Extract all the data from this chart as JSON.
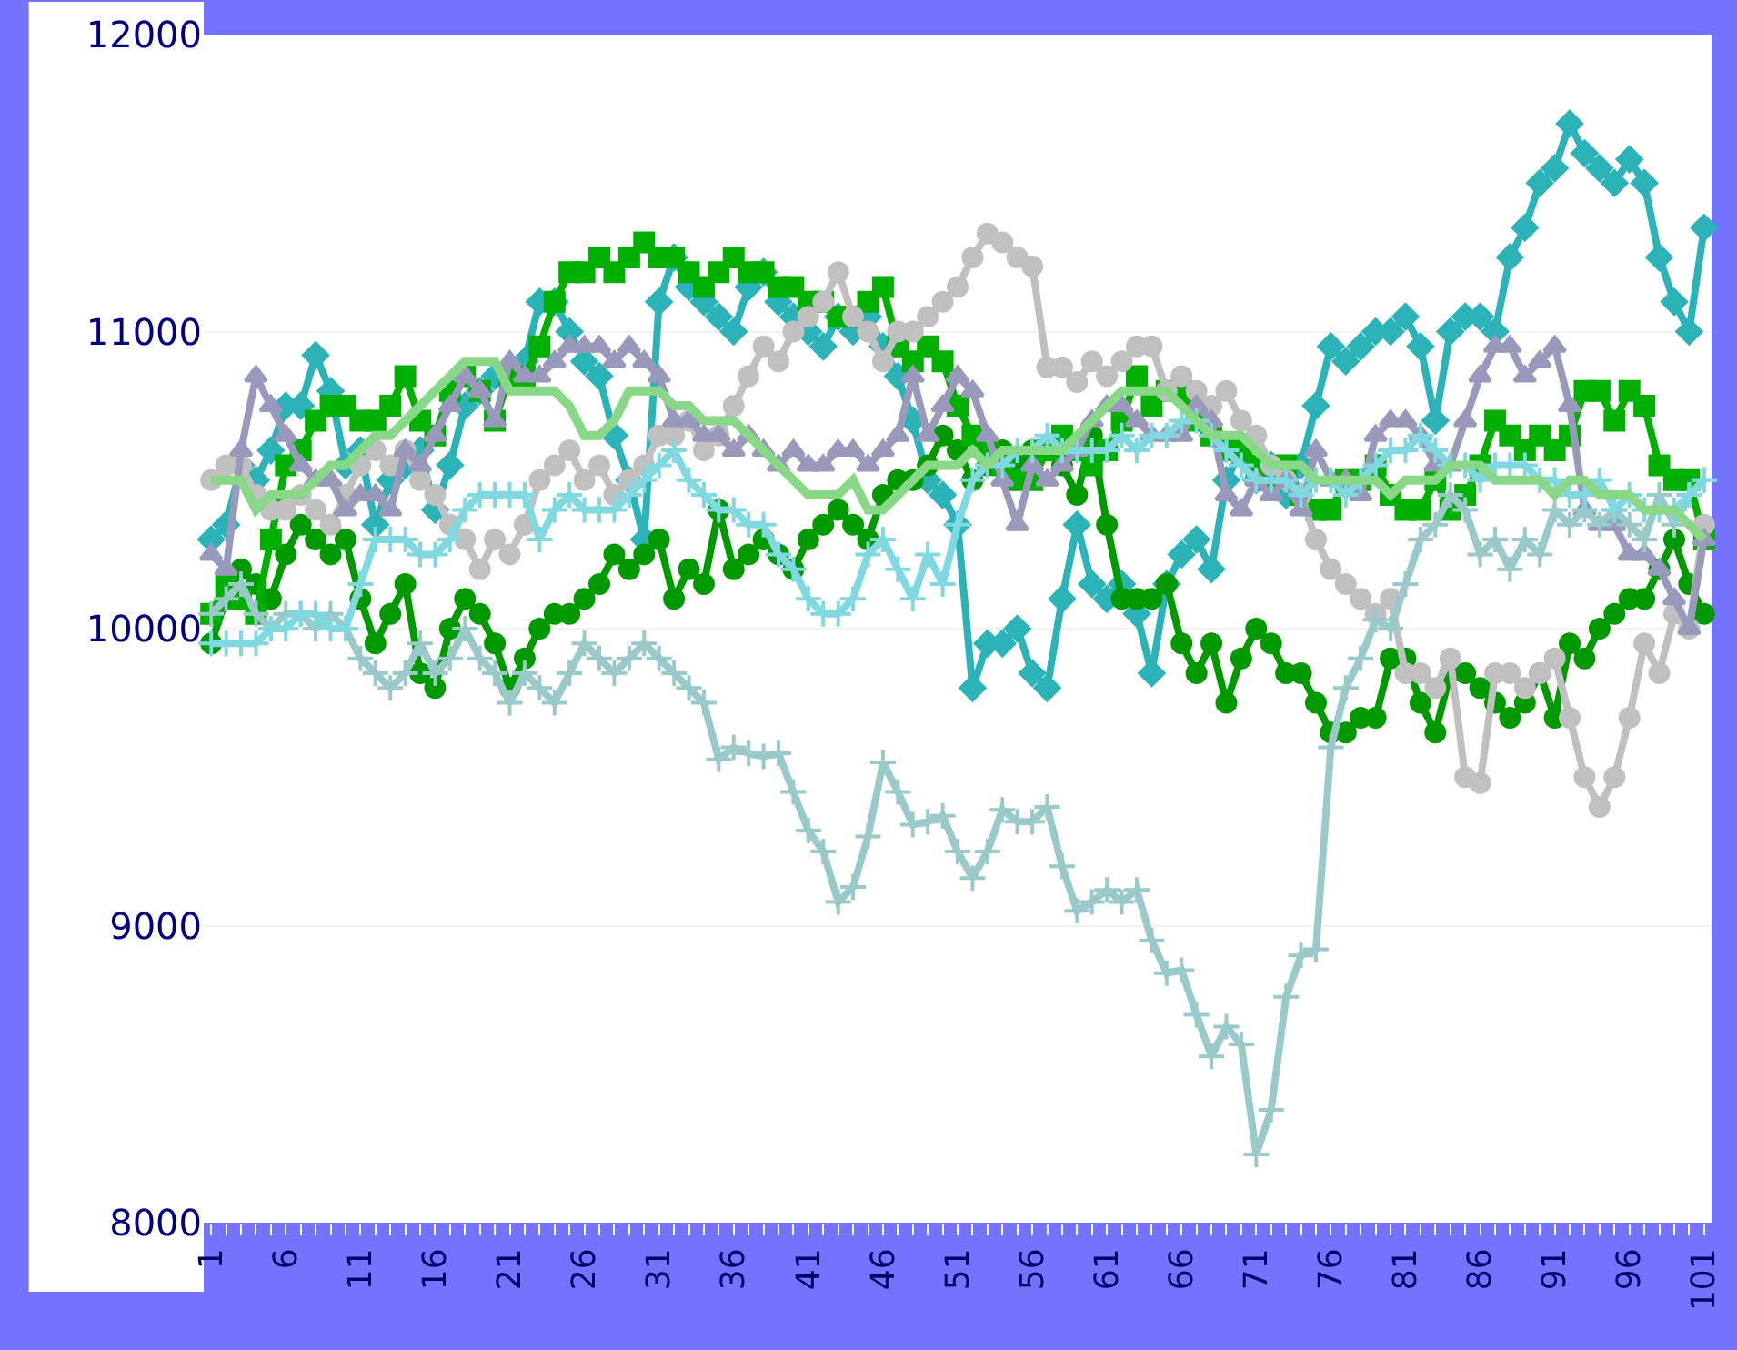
{
  "chart_data": {
    "type": "line",
    "categories": [
      "1",
      null,
      null,
      null,
      null,
      "6",
      null,
      null,
      null,
      null,
      "11",
      null,
      null,
      null,
      null,
      "16",
      null,
      null,
      null,
      null,
      "21",
      null,
      null,
      null,
      null,
      "26",
      null,
      null,
      null,
      null,
      "31",
      null,
      null,
      null,
      null,
      "36",
      null,
      null,
      null,
      null,
      "41",
      null,
      null,
      null,
      null,
      "46",
      null,
      null,
      null,
      null,
      "51",
      null,
      null,
      null,
      null,
      "56",
      null,
      null,
      null,
      null,
      "61",
      null,
      null,
      null,
      null,
      "66",
      null,
      null,
      null,
      null,
      "71",
      null,
      null,
      null,
      null,
      "76",
      null,
      null,
      null,
      null,
      "81",
      null,
      null,
      null,
      null,
      "86",
      null,
      null,
      null,
      null,
      "91",
      null,
      null,
      null,
      null,
      "96",
      null,
      null,
      null,
      null,
      "101"
    ],
    "ylim": [
      8000,
      12000
    ],
    "yticks": [
      8000,
      9000,
      10000,
      11000,
      12000
    ],
    "grid": "y",
    "line_style": "solid",
    "series": [
      {
        "color": "#2bb3b8",
        "marker": "diamond",
        "values": [
          10300,
          10350,
          10550,
          10500,
          10600,
          10750,
          10750,
          10920,
          10800,
          10550,
          10600,
          10350,
          10500,
          10550,
          10600,
          10400,
          10550,
          10750,
          10800,
          10850,
          10850,
          10900,
          11100,
          11100,
          11000,
          10900,
          10850,
          10650,
          10500,
          10300,
          11100,
          11250,
          11150,
          11100,
          11050,
          11000,
          11150,
          11200,
          11100,
          11050,
          11000,
          10950,
          11050,
          11000,
          11050,
          10950,
          10850,
          10700,
          10500,
          10450,
          10350,
          9800,
          9950,
          9950,
          10000,
          9850,
          9800,
          10100,
          10350,
          10150,
          10100,
          10150,
          10050,
          9850,
          10150,
          10250,
          10300,
          10200,
          10500,
          10600,
          10500,
          10550,
          10450,
          10550,
          10750,
          10950,
          10900,
          10950,
          11000,
          11000,
          11050,
          10950,
          10700,
          11000,
          11050,
          11050,
          11000,
          11250,
          11350,
          11500,
          11550,
          11700,
          11600,
          11550,
          11500,
          11580,
          11500,
          11250,
          11100,
          11000,
          11350
        ]
      },
      {
        "color": "#009900",
        "marker": "circle",
        "values": [
          9950,
          10100,
          10200,
          10150,
          10100,
          10250,
          10350,
          10300,
          10250,
          10300,
          10100,
          9950,
          10050,
          10150,
          9850,
          9800,
          10000,
          10100,
          10050,
          9950,
          9800,
          9900,
          10000,
          10050,
          10050,
          10100,
          10150,
          10250,
          10200,
          10250,
          10300,
          10100,
          10200,
          10150,
          10400,
          10200,
          10250,
          10300,
          10250,
          10200,
          10300,
          10350,
          10400,
          10350,
          10300,
          10450,
          10500,
          10500,
          10550,
          10650,
          10600,
          10500,
          10550,
          10600,
          10550,
          10600,
          10600,
          10550,
          10450,
          10650,
          10350,
          10100,
          10100,
          10100,
          10150,
          9950,
          9850,
          9950,
          9750,
          9900,
          10000,
          9950,
          9850,
          9850,
          9750,
          9650,
          9650,
          9700,
          9700,
          9900,
          9900,
          9750,
          9650,
          9850,
          9850,
          9800,
          9750,
          9700,
          9750,
          9850,
          9700,
          9950,
          9900,
          10000,
          10050,
          10100,
          10100,
          10200,
          10300,
          10150,
          10050
        ]
      },
      {
        "color": "#00b000",
        "marker": "square",
        "values": [
          10050,
          10150,
          10100,
          10050,
          10300,
          10550,
          10600,
          10700,
          10750,
          10750,
          10700,
          10700,
          10750,
          10850,
          10700,
          10650,
          10800,
          10850,
          10800,
          10700,
          10850,
          10850,
          10950,
          11100,
          11200,
          11200,
          11250,
          11200,
          11250,
          11300,
          11250,
          11250,
          11200,
          11150,
          11200,
          11250,
          11200,
          11200,
          11150,
          11150,
          11100,
          11100,
          11050,
          11050,
          11100,
          11150,
          10950,
          10900,
          10950,
          10900,
          10750,
          10650,
          10600,
          10550,
          10500,
          10500,
          10600,
          10650,
          10600,
          10550,
          10600,
          10700,
          10850,
          10750,
          10800,
          10800,
          10700,
          10650,
          10600,
          10600,
          10550,
          10500,
          10550,
          10450,
          10400,
          10400,
          10500,
          10500,
          10550,
          10450,
          10400,
          10400,
          10500,
          10400,
          10450,
          10550,
          10700,
          10650,
          10600,
          10650,
          10600,
          10650,
          10800,
          10800,
          10700,
          10800,
          10750,
          10550,
          10500,
          10500,
          10300
        ]
      },
      {
        "color": "#c0c0c0",
        "marker": "circle",
        "values": [
          10500,
          10550,
          10550,
          10450,
          10400,
          10400,
          10450,
          10400,
          10350,
          10450,
          10550,
          10600,
          10550,
          10600,
          10500,
          10450,
          10350,
          10300,
          10200,
          10300,
          10250,
          10350,
          10500,
          10550,
          10600,
          10500,
          10550,
          10450,
          10500,
          10550,
          10650,
          10650,
          10700,
          10600,
          10650,
          10750,
          10850,
          10950,
          10900,
          11000,
          11050,
          11100,
          11200,
          11050,
          11000,
          10900,
          11000,
          11000,
          11050,
          11100,
          11150,
          11250,
          11330,
          11300,
          11250,
          11220,
          10880,
          10880,
          10830,
          10900,
          10850,
          10900,
          10950,
          10950,
          10800,
          10850,
          10800,
          10750,
          10800,
          10700,
          10650,
          10550,
          10500,
          10450,
          10300,
          10200,
          10150,
          10100,
          10050,
          10100,
          9850,
          9850,
          9800,
          9900,
          9500,
          9480,
          9850,
          9850,
          9800,
          9850,
          9900,
          9700,
          9500,
          9400,
          9500,
          9700,
          9950,
          9850,
          10050,
          10000,
          10350
        ]
      },
      {
        "color": "#9999bb",
        "marker": "triangle",
        "values": [
          10250,
          10200,
          10600,
          10850,
          10750,
          10650,
          10550,
          10500,
          10500,
          10400,
          10450,
          10450,
          10400,
          10600,
          10550,
          10650,
          10750,
          10850,
          10800,
          10700,
          10900,
          10850,
          10850,
          10900,
          10950,
          10950,
          10950,
          10900,
          10950,
          10900,
          10850,
          10700,
          10700,
          10650,
          10650,
          10600,
          10650,
          10600,
          10550,
          10600,
          10550,
          10550,
          10600,
          10600,
          10550,
          10600,
          10650,
          10850,
          10650,
          10750,
          10850,
          10800,
          10650,
          10500,
          10350,
          10550,
          10500,
          10550,
          10600,
          10700,
          10750,
          10750,
          10700,
          10650,
          10650,
          10650,
          10750,
          10700,
          10450,
          10400,
          10500,
          10450,
          10500,
          10400,
          10600,
          10500,
          10500,
          10450,
          10650,
          10700,
          10700,
          10650,
          10550,
          10550,
          10700,
          10850,
          10950,
          10950,
          10850,
          10900,
          10950,
          10750,
          10400,
          10350,
          10350,
          10250,
          10250,
          10200,
          10100,
          10000,
          10300
        ]
      },
      {
        "color": "#99c9c9",
        "marker": "cross",
        "values": [
          10050,
          10100,
          10150,
          10050,
          10000,
          10050,
          10050,
          10000,
          10050,
          10000,
          9900,
          9850,
          9800,
          9850,
          9950,
          9850,
          9900,
          10000,
          9900,
          9850,
          9750,
          9850,
          9800,
          9750,
          9850,
          9950,
          9900,
          9850,
          9900,
          9950,
          9900,
          9850,
          9800,
          9750,
          9560,
          9600,
          9580,
          9570,
          9580,
          9450,
          9320,
          9250,
          9080,
          9130,
          9300,
          9550,
          9450,
          9340,
          9350,
          9370,
          9250,
          9160,
          9250,
          9390,
          9350,
          9350,
          9400,
          9200,
          9050,
          9080,
          9120,
          9080,
          9120,
          8950,
          8840,
          8850,
          8700,
          8560,
          8660,
          8600,
          8230,
          8380,
          8760,
          8900,
          8920,
          9600,
          9800,
          9900,
          10030,
          10000,
          10150,
          10300,
          10350,
          10450,
          10400,
          10250,
          10300,
          10200,
          10300,
          10250,
          10400,
          10350,
          10400,
          10350,
          10400,
          10350,
          10300,
          10450,
          10350,
          10450,
          10500
        ]
      },
      {
        "color": "#80d8e0",
        "marker": "cross",
        "values": [
          9950,
          9950,
          9950,
          9950,
          10000,
          10000,
          10050,
          10050,
          10000,
          10000,
          10150,
          10300,
          10300,
          10300,
          10250,
          10250,
          10300,
          10400,
          10450,
          10450,
          10450,
          10450,
          10300,
          10400,
          10450,
          10400,
          10400,
          10400,
          10450,
          10500,
          10550,
          10600,
          10500,
          10450,
          10400,
          10400,
          10350,
          10350,
          10250,
          10200,
          10100,
          10050,
          10050,
          10100,
          10250,
          10300,
          10200,
          10100,
          10250,
          10150,
          10350,
          10500,
          10550,
          10550,
          10600,
          10600,
          10650,
          10600,
          10600,
          10600,
          10600,
          10650,
          10600,
          10650,
          10650,
          10700,
          10700,
          10650,
          10600,
          10550,
          10500,
          10500,
          10500,
          10450,
          10500,
          10500,
          10450,
          10500,
          10550,
          10600,
          10600,
          10650,
          10600,
          10550,
          10550,
          10500,
          10550,
          10550,
          10550,
          10500,
          10500,
          10450,
          10450,
          10500,
          10400,
          10450,
          10400,
          10400,
          10400,
          10450,
          10500
        ]
      },
      {
        "color": "#88d888",
        "marker": "none",
        "values": [
          10500,
          10500,
          10500,
          10400,
          10450,
          10450,
          10450,
          10500,
          10550,
          10550,
          10600,
          10650,
          10650,
          10700,
          10750,
          10800,
          10850,
          10900,
          10900,
          10900,
          10800,
          10800,
          10800,
          10800,
          10750,
          10650,
          10650,
          10700,
          10800,
          10800,
          10800,
          10750,
          10750,
          10700,
          10700,
          10700,
          10650,
          10600,
          10550,
          10500,
          10450,
          10450,
          10450,
          10500,
          10400,
          10400,
          10450,
          10500,
          10550,
          10550,
          10550,
          10600,
          10550,
          10600,
          10600,
          10600,
          10600,
          10600,
          10650,
          10700,
          10750,
          10800,
          10800,
          10800,
          10800,
          10750,
          10700,
          10650,
          10650,
          10650,
          10600,
          10550,
          10550,
          10550,
          10500,
          10500,
          10500,
          10500,
          10500,
          10450,
          10500,
          10500,
          10500,
          10550,
          10550,
          10550,
          10500,
          10500,
          10500,
          10500,
          10450,
          10500,
          10500,
          10450,
          10450,
          10450,
          10400,
          10400,
          10400,
          10350,
          10300
        ]
      }
    ]
  }
}
